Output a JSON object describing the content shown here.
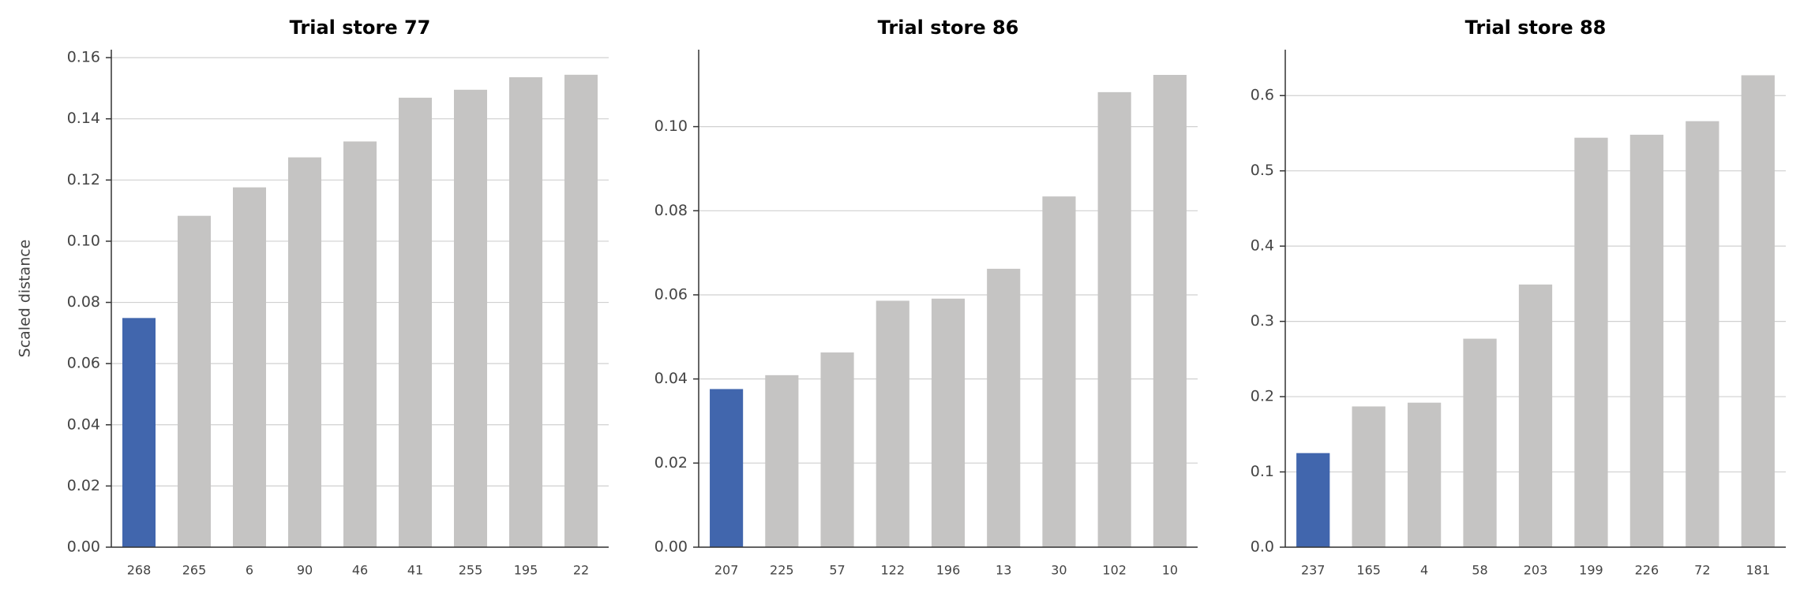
{
  "chart_data": [
    {
      "type": "bar",
      "title": "Trial store 77",
      "y_label": "Scaled distance",
      "categories": [
        "268",
        "265",
        "6",
        "90",
        "46",
        "41",
        "255",
        "195",
        "22"
      ],
      "values": [
        0.0749,
        0.1083,
        0.1176,
        0.1274,
        0.1326,
        0.1469,
        0.1495,
        0.1536,
        0.1544
      ],
      "colors": [
        "#4166ad",
        "#c5c4c3",
        "#c5c4c3",
        "#c5c4c3",
        "#c5c4c3",
        "#c5c4c3",
        "#c5c4c3",
        "#c5c4c3",
        "#c5c4c3"
      ],
      "ylim": [
        0,
        0.1626
      ],
      "yticks": [
        {
          "value": 0,
          "label": "0.00"
        },
        0.02,
        0.04,
        0.06,
        0.08,
        {
          "value": 0.1,
          "label": "0.10"
        },
        0.12,
        0.14,
        0.16
      ],
      "grid": true
    },
    {
      "type": "bar",
      "title": "Trial store 86",
      "categories": [
        "207",
        "225",
        "57",
        "122",
        "196",
        "13",
        "30",
        "102",
        "10"
      ],
      "values": [
        0.0376,
        0.0409,
        0.0463,
        0.0586,
        0.0591,
        0.0662,
        0.0834,
        0.1082,
        0.1123
      ],
      "colors": [
        "#4166ad",
        "#c5c4c3",
        "#c5c4c3",
        "#c5c4c3",
        "#c5c4c3",
        "#c5c4c3",
        "#c5c4c3",
        "#c5c4c3",
        "#c5c4c3"
      ],
      "ylim": [
        0,
        0.1183
      ],
      "yticks": [
        {
          "value": 0,
          "label": "0.00"
        },
        0.02,
        0.04,
        0.06,
        0.08,
        {
          "value": 0.1,
          "label": "0.10"
        }
      ],
      "grid": true
    },
    {
      "type": "bar",
      "title": "Trial store 88",
      "categories": [
        "237",
        "165",
        "4",
        "58",
        "203",
        "199",
        "226",
        "72",
        "181"
      ],
      "values": [
        0.125,
        0.187,
        0.192,
        0.277,
        0.349,
        0.544,
        0.548,
        0.566,
        0.627
      ],
      "colors": [
        "#4166ad",
        "#c5c4c3",
        "#c5c4c3",
        "#c5c4c3",
        "#c5c4c3",
        "#c5c4c3",
        "#c5c4c3",
        "#c5c4c3",
        "#c5c4c3"
      ],
      "ylim": [
        0,
        0.661
      ],
      "yticks": [
        {
          "value": 0,
          "label": "0.0"
        },
        0.1,
        0.2,
        0.3,
        0.4,
        0.5,
        0.6
      ],
      "grid": true
    }
  ]
}
